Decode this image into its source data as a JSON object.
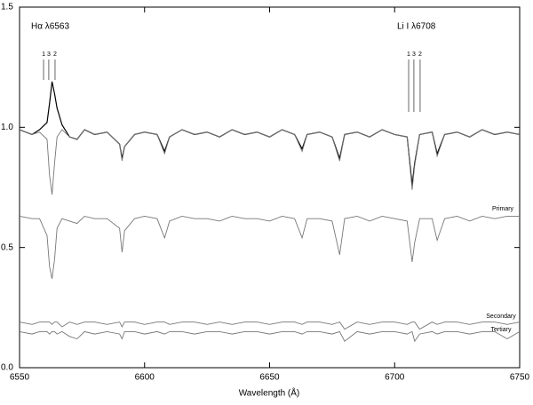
{
  "chart_data": {
    "type": "line",
    "xlabel": "Wavelength (Å)",
    "x": [
      6550,
      6555,
      6558,
      6561,
      6562,
      6563,
      6564,
      6565,
      6567,
      6570,
      6573,
      6576,
      6580,
      6585,
      6590,
      6591,
      6592,
      6596,
      6600,
      6605,
      6608,
      6610,
      6615,
      6620,
      6625,
      6630,
      6635,
      6640,
      6645,
      6650,
      6655,
      6660,
      6663,
      6665,
      6670,
      6675,
      6678,
      6680,
      6685,
      6690,
      6695,
      6700,
      6705,
      6707,
      6708,
      6710,
      6715,
      6717,
      6720,
      6725,
      6730,
      6735,
      6740,
      6745,
      6750
    ],
    "series": [
      {
        "color": "#000000",
        "values": [
          0.99,
          0.97,
          0.99,
          1.02,
          1.1,
          1.19,
          1.14,
          1.08,
          1.01,
          0.96,
          0.95,
          0.99,
          0.97,
          0.98,
          0.93,
          0.87,
          0.92,
          0.97,
          0.98,
          0.97,
          0.9,
          0.96,
          0.99,
          0.97,
          0.98,
          0.96,
          0.99,
          0.97,
          0.98,
          0.96,
          0.99,
          0.97,
          0.91,
          0.97,
          0.98,
          0.96,
          0.87,
          0.97,
          0.98,
          0.96,
          0.99,
          0.97,
          0.96,
          0.76,
          0.85,
          0.97,
          0.98,
          0.89,
          0.97,
          0.98,
          0.96,
          0.99,
          0.97,
          0.98,
          0.97
        ]
      },
      {
        "color": "#777777",
        "values": [
          0.99,
          0.97,
          0.98,
          0.95,
          0.8,
          0.72,
          0.85,
          0.96,
          0.99,
          0.96,
          0.95,
          0.99,
          0.97,
          0.98,
          0.93,
          0.86,
          0.92,
          0.97,
          0.98,
          0.97,
          0.89,
          0.96,
          0.99,
          0.97,
          0.98,
          0.96,
          0.99,
          0.97,
          0.98,
          0.96,
          0.99,
          0.97,
          0.9,
          0.97,
          0.98,
          0.96,
          0.86,
          0.97,
          0.98,
          0.96,
          0.99,
          0.97,
          0.96,
          0.74,
          0.84,
          0.97,
          0.98,
          0.88,
          0.97,
          0.98,
          0.96,
          0.99,
          0.97,
          0.98,
          0.97
        ]
      },
      {
        "name": "Primary",
        "color": "#777777",
        "values": [
          0.63,
          0.62,
          0.62,
          0.55,
          0.42,
          0.37,
          0.45,
          0.58,
          0.62,
          0.61,
          0.6,
          0.63,
          0.62,
          0.62,
          0.58,
          0.48,
          0.57,
          0.62,
          0.63,
          0.62,
          0.54,
          0.61,
          0.63,
          0.62,
          0.62,
          0.61,
          0.63,
          0.62,
          0.62,
          0.61,
          0.63,
          0.62,
          0.54,
          0.62,
          0.62,
          0.61,
          0.47,
          0.62,
          0.63,
          0.61,
          0.63,
          0.62,
          0.61,
          0.44,
          0.52,
          0.62,
          0.62,
          0.53,
          0.62,
          0.63,
          0.61,
          0.63,
          0.62,
          0.63,
          0.63
        ]
      },
      {
        "name": "Secondary",
        "color": "#777777",
        "values": [
          0.19,
          0.18,
          0.19,
          0.19,
          0.19,
          0.18,
          0.19,
          0.19,
          0.17,
          0.19,
          0.18,
          0.19,
          0.19,
          0.18,
          0.19,
          0.17,
          0.19,
          0.19,
          0.18,
          0.19,
          0.19,
          0.18,
          0.19,
          0.19,
          0.18,
          0.19,
          0.18,
          0.19,
          0.19,
          0.18,
          0.19,
          0.19,
          0.18,
          0.19,
          0.19,
          0.18,
          0.19,
          0.16,
          0.19,
          0.18,
          0.19,
          0.19,
          0.18,
          0.19,
          0.19,
          0.16,
          0.19,
          0.18,
          0.19,
          0.19,
          0.18,
          0.19,
          0.19,
          0.18,
          0.19
        ]
      },
      {
        "name": "Tertiary",
        "color": "#777777",
        "values": [
          0.15,
          0.14,
          0.15,
          0.15,
          0.14,
          0.15,
          0.15,
          0.14,
          0.15,
          0.13,
          0.12,
          0.15,
          0.14,
          0.15,
          0.14,
          0.12,
          0.15,
          0.15,
          0.14,
          0.15,
          0.14,
          0.15,
          0.15,
          0.14,
          0.15,
          0.15,
          0.14,
          0.15,
          0.15,
          0.14,
          0.15,
          0.15,
          0.14,
          0.15,
          0.15,
          0.14,
          0.15,
          0.11,
          0.15,
          0.14,
          0.15,
          0.15,
          0.14,
          0.15,
          0.11,
          0.14,
          0.15,
          0.14,
          0.15,
          0.15,
          0.14,
          0.15,
          0.15,
          0.12,
          0.15
        ]
      }
    ],
    "xlim": [
      6550,
      6750
    ],
    "xticks": [
      6550,
      6600,
      6650,
      6700,
      6750
    ],
    "ylim": [
      0,
      1.5
    ],
    "yticks": [
      {
        "value": 0,
        "label": "0.0"
      },
      {
        "value": 0.5,
        "label": "0.5"
      },
      {
        "value": 1,
        "label": "1.0"
      },
      {
        "value": 1.5,
        "label": "1.5"
      }
    ],
    "annotations": [
      {
        "text": "Hα λ6563",
        "markers": [
          {
            "label": "1",
            "x": 6559.6
          },
          {
            "label": "3",
            "x": 6561.7
          },
          {
            "label": "2",
            "x": 6564.2
          }
        ]
      },
      {
        "text": "Li I λ6708",
        "markers": [
          {
            "label": "1",
            "x": 6705.6
          },
          {
            "label": "3",
            "x": 6707.7
          },
          {
            "label": "2",
            "x": 6710.2
          }
        ]
      }
    ]
  }
}
